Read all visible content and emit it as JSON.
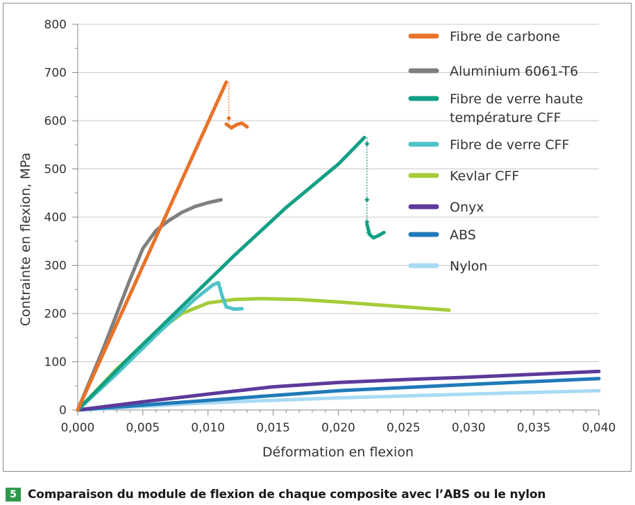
{
  "caption": {
    "number": "5",
    "text": "Comparaison du module de flexion de chaque composite avec l’ABS ou le nylon",
    "badge_color": "#2f9a4c"
  },
  "chart_data": {
    "type": "line",
    "title": "",
    "xlabel": "Déformation en flexion",
    "ylabel": "Contrainte en flexion, MPa",
    "xlim": [
      0,
      0.04
    ],
    "ylim": [
      0,
      800
    ],
    "xticks": [
      "0,000",
      "0,005",
      "0,010",
      "0,015",
      "0,020",
      "0,025",
      "0,030",
      "0,035",
      "0,040"
    ],
    "yticks": [
      "0",
      "100",
      "200",
      "300",
      "400",
      "500",
      "600",
      "700",
      "800"
    ],
    "grid": "horizontal",
    "legend_position": "right",
    "series": [
      {
        "name": "Fibre de carbone",
        "color": "#e8732a",
        "x": [
          0,
          0.0114
        ],
        "y": [
          0,
          680
        ],
        "failure_x": 0.0116,
        "failure_points": [
          680,
          605,
          587
        ],
        "tail": {
          "x": [
            0.0114,
            0.0118,
            0.0122,
            0.0126,
            0.013
          ],
          "y": [
            593,
            585,
            592,
            595,
            587
          ]
        }
      },
      {
        "name": "Aluminium 6061-T6",
        "color": "#7f7f7f",
        "x": [
          0,
          0.002,
          0.004,
          0.005,
          0.006,
          0.007,
          0.008,
          0.009,
          0.01,
          0.011
        ],
        "y": [
          0,
          130,
          270,
          335,
          372,
          393,
          410,
          422,
          430,
          436
        ]
      },
      {
        "name": "Fibre de verre haute température CFF",
        "color": "#12a085",
        "x": [
          0,
          0.004,
          0.008,
          0.012,
          0.016,
          0.02,
          0.022
        ],
        "y": [
          0,
          110,
          215,
          320,
          420,
          510,
          565
        ],
        "failure_x": 0.0222,
        "failure_points": [
          565,
          552,
          436,
          390,
          362
        ],
        "tail": {
          "x": [
            0.0222,
            0.0224,
            0.0227,
            0.0231,
            0.0235
          ],
          "y": [
            385,
            364,
            357,
            362,
            368
          ]
        }
      },
      {
        "name": "Fibre de verre CFF",
        "color": "#4fc3c8",
        "x": [
          0,
          0.003,
          0.006,
          0.009,
          0.0104,
          0.0108,
          0.0111,
          0.0114,
          0.012,
          0.0126
        ],
        "y": [
          0,
          75,
          155,
          230,
          260,
          264,
          235,
          214,
          209,
          210
        ]
      },
      {
        "name": "Kevlar CFF",
        "color": "#a5cc3a",
        "x": [
          0,
          0.003,
          0.006,
          0.008,
          0.01,
          0.012,
          0.014,
          0.017,
          0.02,
          0.024,
          0.0285
        ],
        "y": [
          0,
          85,
          160,
          200,
          222,
          229,
          231,
          229,
          224,
          216,
          207
        ]
      },
      {
        "name": "Onyx",
        "color": "#5c3a9a",
        "x": [
          0,
          0.005,
          0.01,
          0.015,
          0.02,
          0.025,
          0.03,
          0.035,
          0.04
        ],
        "y": [
          0,
          17,
          33,
          48,
          57,
          63,
          68,
          74,
          80
        ]
      },
      {
        "name": "ABS",
        "color": "#1f7ab8",
        "x": [
          0,
          0.01,
          0.02,
          0.03,
          0.04
        ],
        "y": [
          0,
          20,
          40,
          53,
          65
        ]
      },
      {
        "name": "Nylon",
        "color": "#a8daf4",
        "x": [
          0,
          0.01,
          0.02,
          0.03,
          0.04
        ],
        "y": [
          0,
          15,
          25,
          33,
          40
        ]
      }
    ]
  }
}
